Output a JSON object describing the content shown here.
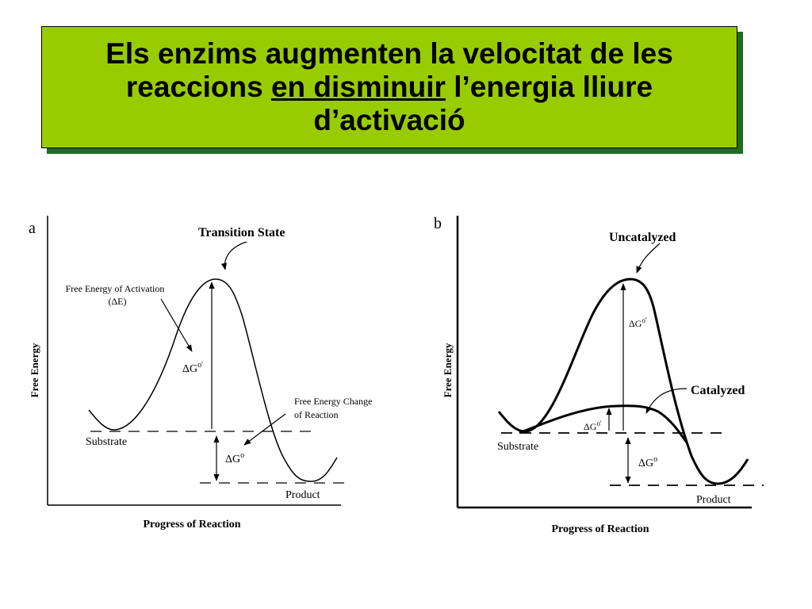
{
  "title": {
    "line1": "Els enzims augmenten la velocitat de les",
    "line2_pre": "reaccions ",
    "line2_em": "en disminuir",
    "line2_post": " l’energia lliure",
    "line3": "d’activació"
  },
  "panel_a": {
    "letter": "a",
    "ylabel": "Free Energy",
    "xlabel": "Progress of Reaction",
    "transition_state": "Transition State",
    "activation_label_1": "Free Energy of Activation",
    "activation_label_2": "(ΔE)",
    "dg_activation": "ΔG",
    "dg_activation_sup": "o'",
    "change_label_1": "Free Energy Change",
    "change_label_2": "of Reaction",
    "dg_change": "ΔG",
    "dg_change_sup": "o",
    "substrate": "Substrate",
    "product": "Product"
  },
  "panel_b": {
    "letter": "b",
    "ylabel": "Free Energy",
    "xlabel": "Progress of Reaction",
    "uncatalyzed": "Uncatalyzed",
    "catalyzed": "Catalyzed",
    "dg_uncat": "ΔG",
    "dg_uncat_sup": "o'",
    "dg_cat": "ΔG",
    "dg_cat_sup": "o'",
    "dg_change": "ΔG",
    "dg_change_sup": "o",
    "substrate": "Substrate",
    "product": "Product"
  }
}
